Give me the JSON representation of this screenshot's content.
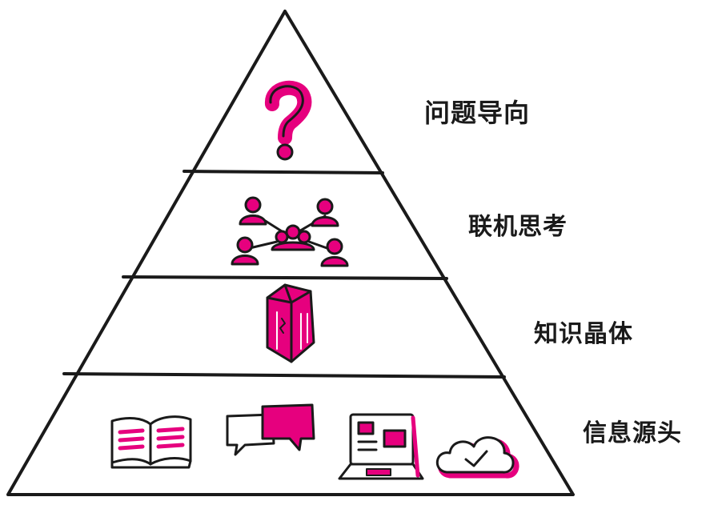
{
  "colors": {
    "accent": "#e6007e",
    "ink": "#1a1a1a",
    "background": "#ffffff"
  },
  "tiers": [
    {
      "label": "问题导向",
      "icon": "question-mark-icon"
    },
    {
      "label": "联机思考",
      "icon": "connected-people-icon"
    },
    {
      "label": "知识晶体",
      "icon": "crystal-icon"
    },
    {
      "label": "信息源头",
      "icons": [
        "open-book-icon",
        "chat-bubbles-icon",
        "laptop-icon",
        "cloud-check-icon"
      ]
    }
  ]
}
